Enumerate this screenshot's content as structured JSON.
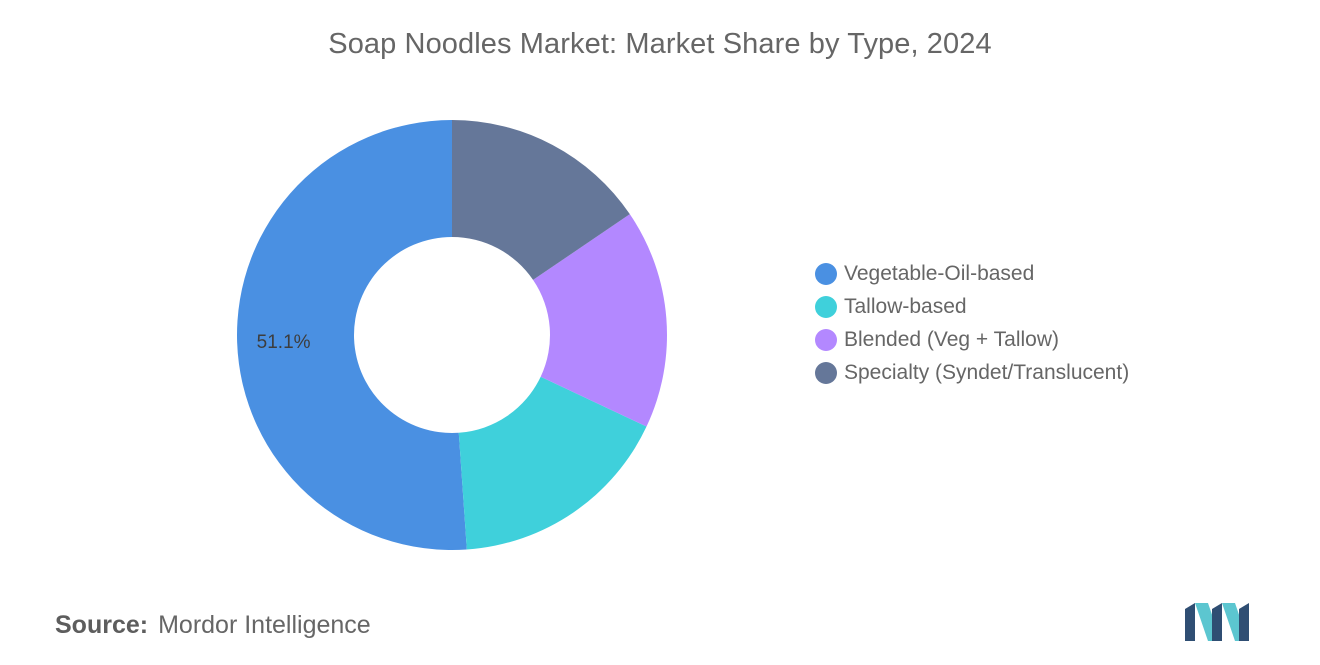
{
  "page": {
    "title": "Soap Noodles Market: Market Share by Type, 2024",
    "source_prefix": "Source:",
    "source_name": "Mordor Intelligence"
  },
  "chart_data": {
    "type": "pie",
    "style": "donut",
    "title": "Soap Noodles Market: Market Share by Type, 2024",
    "categories": [
      "Vegetable-Oil-based",
      "Tallow-based",
      "Blended (Veg + Tallow)",
      "Specialty (Syndet/Translucent)"
    ],
    "values": [
      51.1,
      16.9,
      16.5,
      15.5
    ],
    "value_unit": "%",
    "colors": [
      "#4A90E2",
      "#3FD0DB",
      "#B388FF",
      "#657799"
    ],
    "data_labels": [
      "51.1%",
      "",
      "",
      ""
    ],
    "legend": {
      "placement": "right",
      "entries": [
        {
          "label": "Vegetable-Oil-based",
          "color": "#4A90E2"
        },
        {
          "label": "Tallow-based",
          "color": "#3FD0DB"
        },
        {
          "label": "Blended (Veg + Tallow)",
          "color": "#B388FF"
        },
        {
          "label": "Specialty (Syndet/Translucent)",
          "color": "#657799"
        }
      ]
    }
  },
  "logo": {
    "icon": "mordor-intelligence-logo-icon",
    "colors": [
      "#2F4E73",
      "#5CC6D0"
    ]
  }
}
